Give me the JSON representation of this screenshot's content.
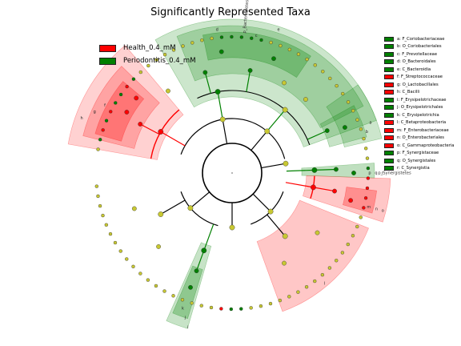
{
  "title": "Significantly Represented Taxa",
  "colors": {
    "health": "#ff0000",
    "periodontitis": "#008000",
    "node_neutral": "#c8c832",
    "health_shade": "#ff0000",
    "periodontitis_shade": "#008000"
  },
  "groups_legend": [
    {
      "label": "Health_0.4_mM",
      "color": "#ff0000"
    },
    {
      "label": "Periodontitis_0.4_mM",
      "color": "#008000"
    }
  ],
  "taxa_legend": [
    {
      "letter": "a",
      "label": "a: F_Coriobacteriaceae",
      "color": "#008000"
    },
    {
      "letter": "b",
      "label": "b: O_Coriobacteriales",
      "color": "#008000"
    },
    {
      "letter": "c",
      "label": "c: F_Prevotellaceae",
      "color": "#008000"
    },
    {
      "letter": "d",
      "label": "d: O_Bacteroidales",
      "color": "#008000"
    },
    {
      "letter": "e",
      "label": "e: C_Bacteroidia",
      "color": "#008000"
    },
    {
      "letter": "f",
      "label": "f: F_Streptococcaceae",
      "color": "#ff0000"
    },
    {
      "letter": "g",
      "label": "g: O_Lactobacillales",
      "color": "#ff0000"
    },
    {
      "letter": "h",
      "label": "h: C_Bacilli",
      "color": "#ff0000"
    },
    {
      "letter": "i",
      "label": "i: F_Erysipelotrichaceae",
      "color": "#008000"
    },
    {
      "letter": "j",
      "label": "j: O_Erysipelotrichales",
      "color": "#008000"
    },
    {
      "letter": "k",
      "label": "k: C_Erysipelotrichia",
      "color": "#008000"
    },
    {
      "letter": "l",
      "label": "l: C_Betaproteobacteria",
      "color": "#ff0000"
    },
    {
      "letter": "m",
      "label": "m: F_Enterobacteriaceae",
      "color": "#ff0000"
    },
    {
      "letter": "n",
      "label": "n: O_Enterobacteriales",
      "color": "#ff0000"
    },
    {
      "letter": "o",
      "label": "o: C_Gammaproteobacteria",
      "color": "#ff0000"
    },
    {
      "letter": "p",
      "label": "p: F_Synergistaceae",
      "color": "#008000"
    },
    {
      "letter": "q",
      "label": "q: O_Synergistales",
      "color": "#008000"
    },
    {
      "letter": "r",
      "label": "r: C_Synergistia",
      "color": "#008000"
    }
  ],
  "clade_labels": {
    "bacteroidetes": "p_Bacteroidetes",
    "synergistetes": "p_Synergistetes"
  }
}
